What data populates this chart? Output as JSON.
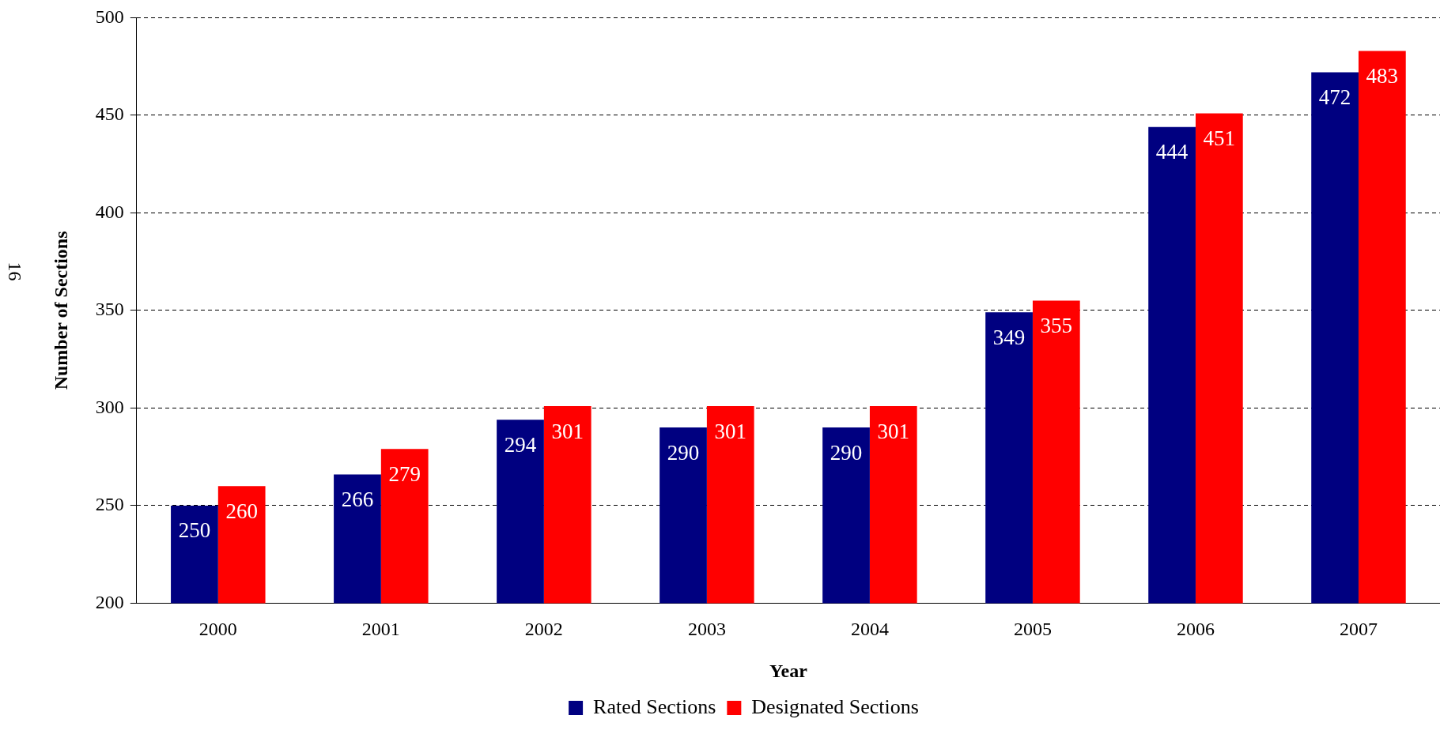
{
  "chart_data": {
    "type": "bar",
    "xlabel": "Year",
    "ylabel": "Number of Sections",
    "categories": [
      "2000",
      "2001",
      "2002",
      "2003",
      "2004",
      "2005",
      "2006",
      "2007"
    ],
    "series": [
      {
        "name": "Rated Sections",
        "color": "#000080",
        "values": [
          250,
          266,
          294,
          290,
          290,
          349,
          444,
          472
        ]
      },
      {
        "name": "Designated Sections",
        "color": "#ff0000",
        "values": [
          260,
          279,
          301,
          301,
          301,
          355,
          451,
          483
        ]
      }
    ],
    "ylim": [
      200,
      500
    ],
    "yticks": [
      200,
      250,
      300,
      350,
      400,
      450,
      500
    ],
    "grid": "y",
    "legend": "bottom",
    "data_labels": true,
    "annotations": [
      "16"
    ]
  }
}
